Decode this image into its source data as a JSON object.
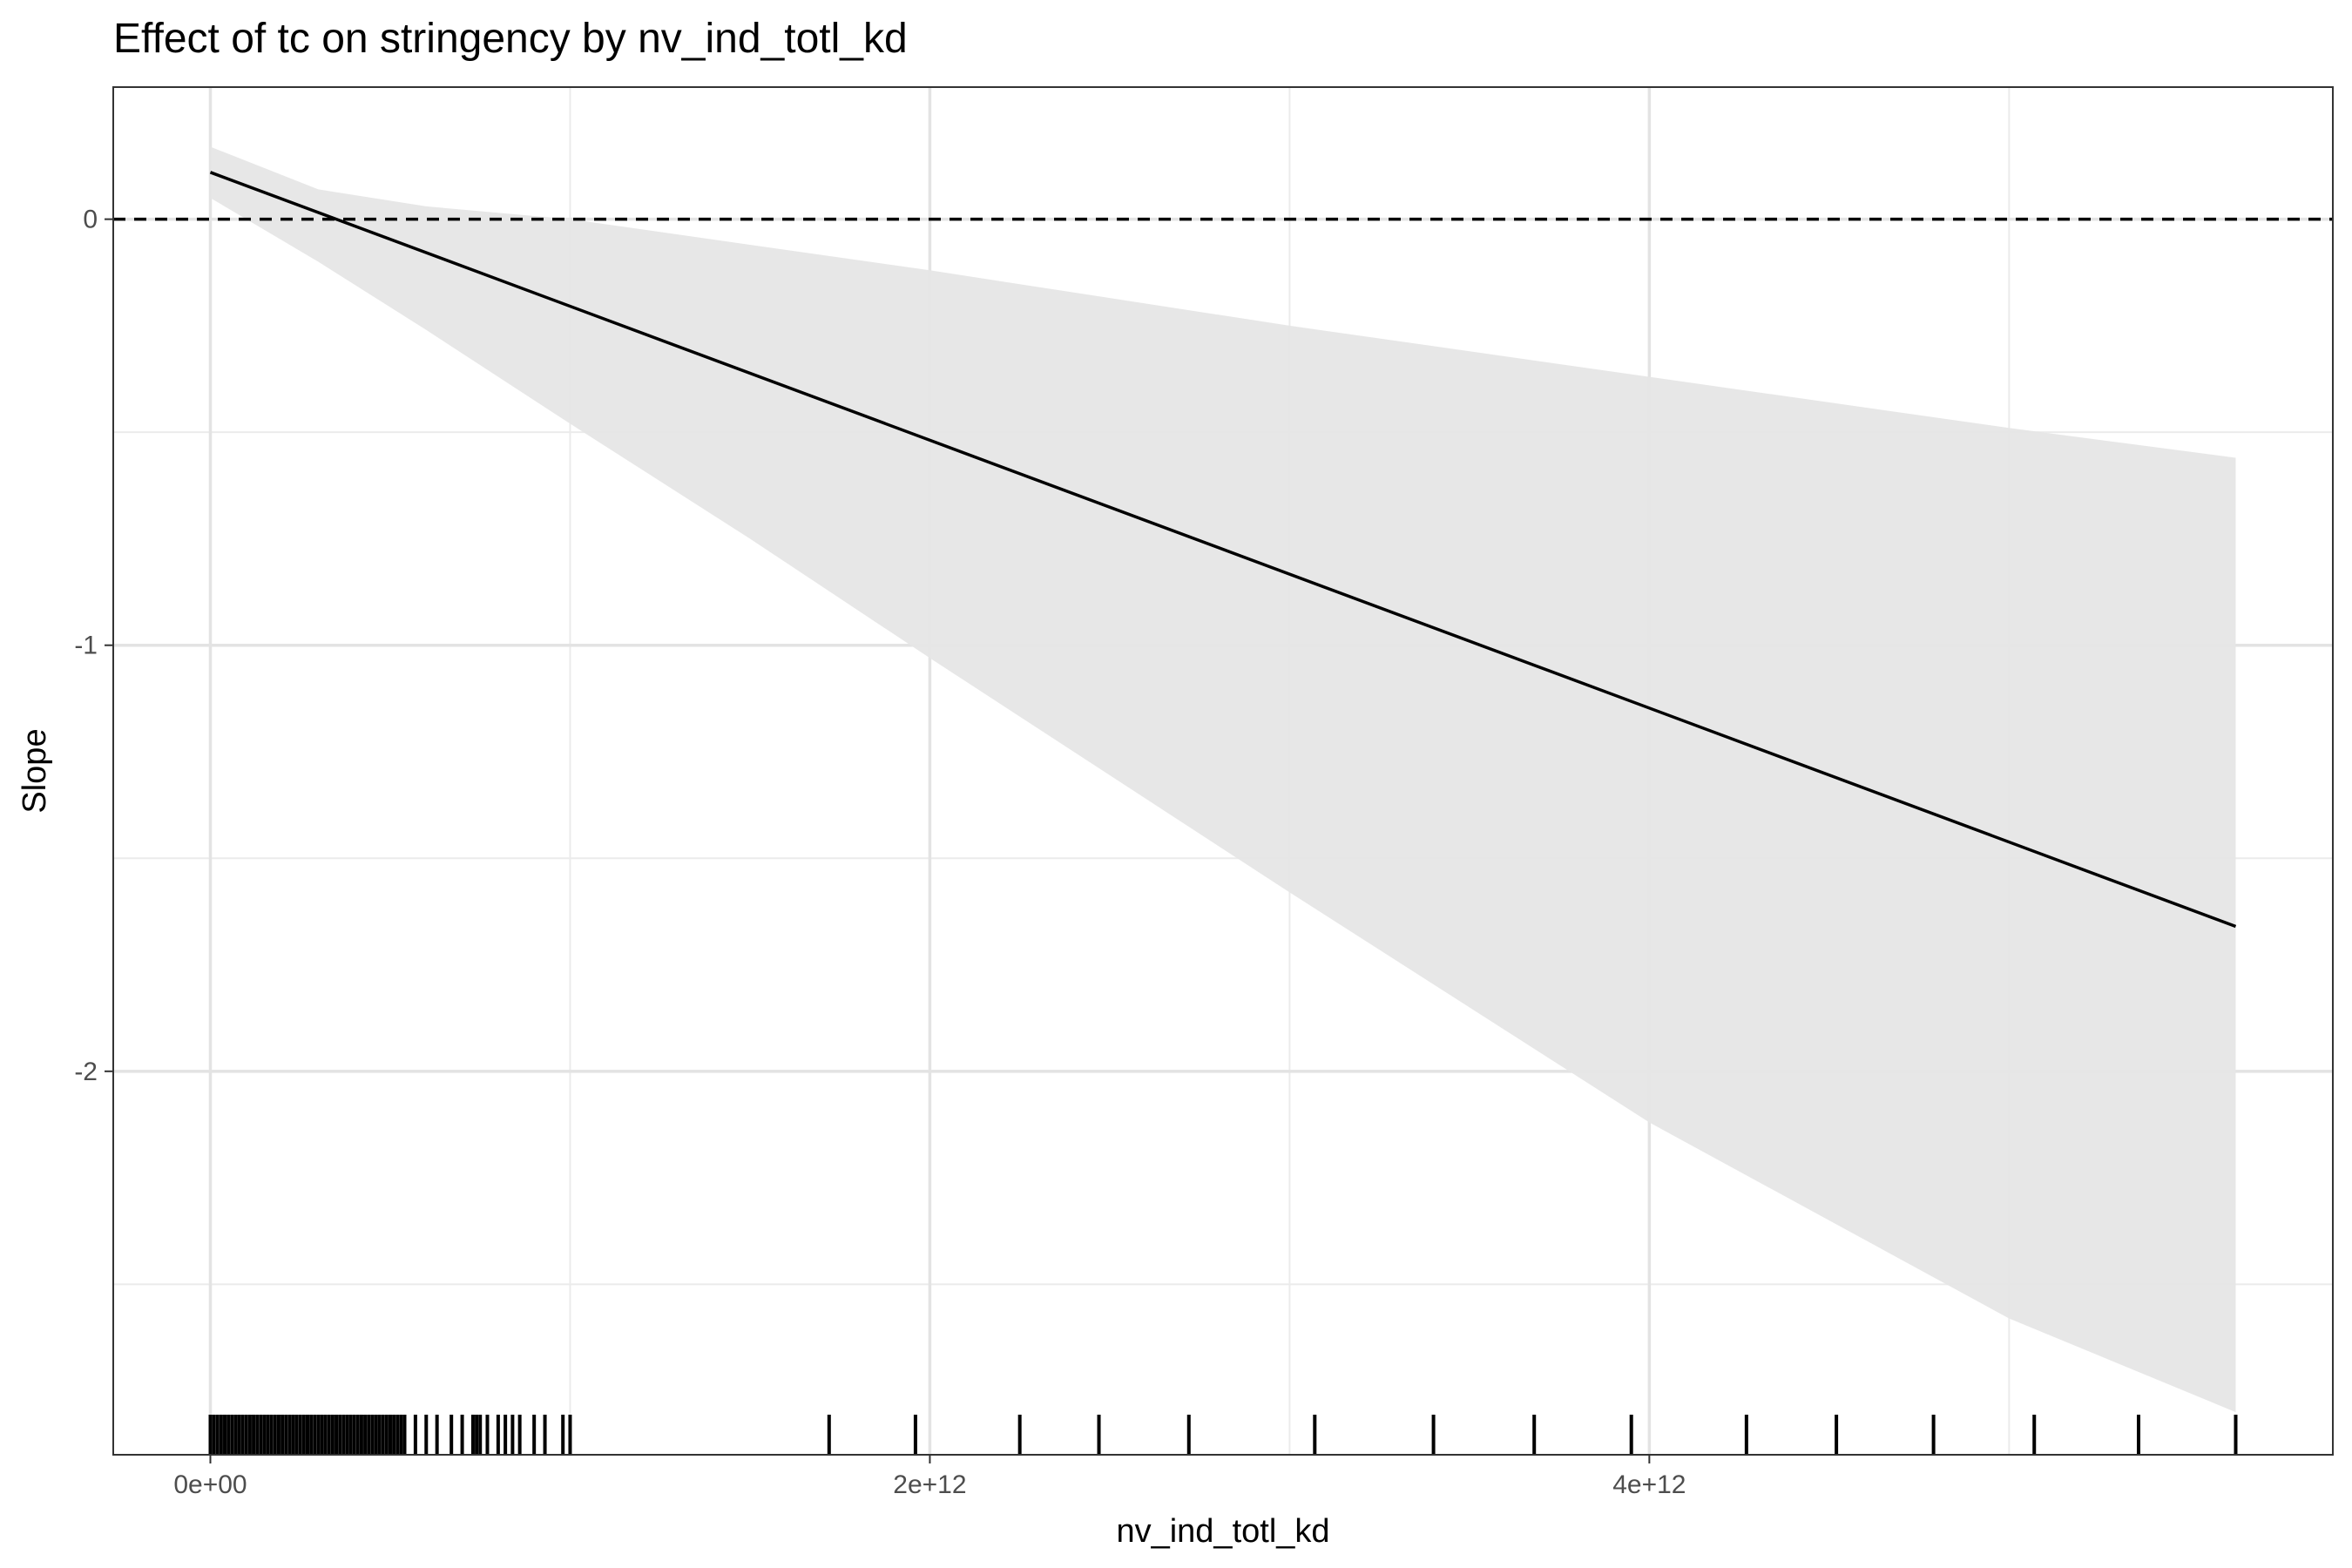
{
  "chart_data": {
    "type": "line",
    "title": "Effect of tc on stringency by nv_ind_totl_kd",
    "xlabel": "nv_ind_totl_kd",
    "ylabel": "Slope",
    "xlim": [
      -270000000000.0,
      5900000000000.0
    ],
    "ylim": [
      -2.9,
      0.31
    ],
    "x_ticks": [
      0,
      2000000000000.0,
      4000000000000.0
    ],
    "x_tick_labels": [
      "0e+00",
      "2e+12",
      "4e+12"
    ],
    "x_minor_ticks": [
      1000000000000.0,
      3000000000000.0,
      5000000000000.0
    ],
    "y_ticks": [
      0,
      -1,
      -2
    ],
    "y_tick_labels": [
      "0",
      "-1",
      "-2"
    ],
    "y_minor_ticks": [
      -0.5,
      -1.5,
      -2.5
    ],
    "grid": true,
    "reference_line": {
      "y": 0,
      "style": "dashed"
    },
    "series": [
      {
        "x": [
          0,
          5630000000000.0
        ],
        "y": [
          0.11,
          -1.66
        ],
        "ci_x": [
          0,
          300000000000.0,
          600000000000.0,
          1000000000000.0,
          1500000000000.0,
          2000000000000.0,
          3000000000000.0,
          4000000000000.0,
          5000000000000.0,
          5630000000000.0
        ],
        "ci_lower": [
          0.05,
          -0.1,
          -0.26,
          -0.48,
          -0.75,
          -1.03,
          -1.58,
          -2.12,
          -2.58,
          -2.8
        ],
        "ci_upper": [
          0.17,
          0.07,
          0.03,
          0.0,
          -0.06,
          -0.12,
          -0.25,
          -0.37,
          -0.49,
          -0.56
        ]
      }
    ],
    "rug_x": [
      0,
      10000000000.0,
      20000000000.0,
      30000000000.0,
      40000000000.0,
      50000000000.0,
      60000000000.0,
      70000000000.0,
      80000000000.0,
      90000000000.0,
      100000000000.0,
      110000000000.0,
      120000000000.0,
      130000000000.0,
      140000000000.0,
      150000000000.0,
      160000000000.0,
      170000000000.0,
      180000000000.0,
      190000000000.0,
      200000000000.0,
      210000000000.0,
      220000000000.0,
      230000000000.0,
      240000000000.0,
      250000000000.0,
      260000000000.0,
      270000000000.0,
      280000000000.0,
      290000000000.0,
      300000000000.0,
      310000000000.0,
      320000000000.0,
      330000000000.0,
      340000000000.0,
      350000000000.0,
      360000000000.0,
      370000000000.0,
      380000000000.0,
      390000000000.0,
      400000000000.0,
      410000000000.0,
      420000000000.0,
      430000000000.0,
      440000000000.0,
      450000000000.0,
      460000000000.0,
      470000000000.0,
      480000000000.0,
      490000000000.0,
      500000000000.0,
      510000000000.0,
      520000000000.0,
      530000000000.0,
      540000000000.0,
      570000000000.0,
      600000000000.0,
      630000000000.0,
      670000000000.0,
      700000000000.0,
      730000000000.0,
      740000000000.0,
      750000000000.0,
      770000000000.0,
      800000000000.0,
      820000000000.0,
      840000000000.0,
      860000000000.0,
      900000000000.0,
      930000000000.0,
      980000000000.0,
      1000000000000.0,
      1720000000000.0,
      1960000000000.0,
      2250000000000.0,
      2470000000000.0,
      2720000000000.0,
      3070000000000.0,
      3400000000000.0,
      3680000000000.0,
      3950000000000.0,
      4270000000000.0,
      4520000000000.0,
      4790000000000.0,
      5070000000000.0,
      5360000000000.0,
      5630000000000.0
    ]
  }
}
